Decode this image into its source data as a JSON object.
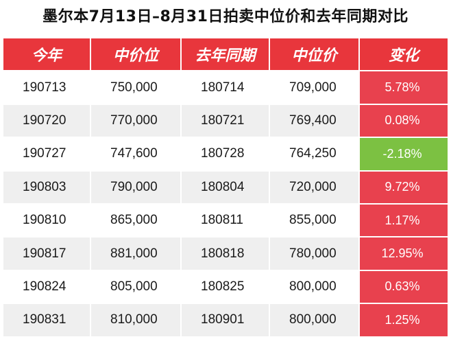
{
  "title": "墨尔本7月13日–8月31日拍卖中位价和去年同期对比",
  "colors": {
    "header": "#e8363c",
    "increase": "#e8414e",
    "decrease": "#7cc142"
  },
  "chart_data": {
    "type": "table",
    "columns": [
      "今年",
      "中价位",
      "去年同期",
      "中位价",
      "变化"
    ],
    "rows": [
      [
        "190713",
        "750,000",
        "180714",
        "709,000",
        "5.78%"
      ],
      [
        "190720",
        "770,000",
        "180721",
        "769,400",
        "0.08%"
      ],
      [
        "190727",
        "747,600",
        "180728",
        "764,250",
        "-2.18%"
      ],
      [
        "190803",
        "790,000",
        "180804",
        "720,000",
        "9.72%"
      ],
      [
        "190810",
        "865,000",
        "180811",
        "855,000",
        "1.17%"
      ],
      [
        "190817",
        "881,000",
        "180818",
        "780,000",
        "12.95%"
      ],
      [
        "190824",
        "805,000",
        "180825",
        "800,000",
        "0.63%"
      ],
      [
        "190831",
        "810,000",
        "180901",
        "800,000",
        "1.25%"
      ]
    ]
  }
}
